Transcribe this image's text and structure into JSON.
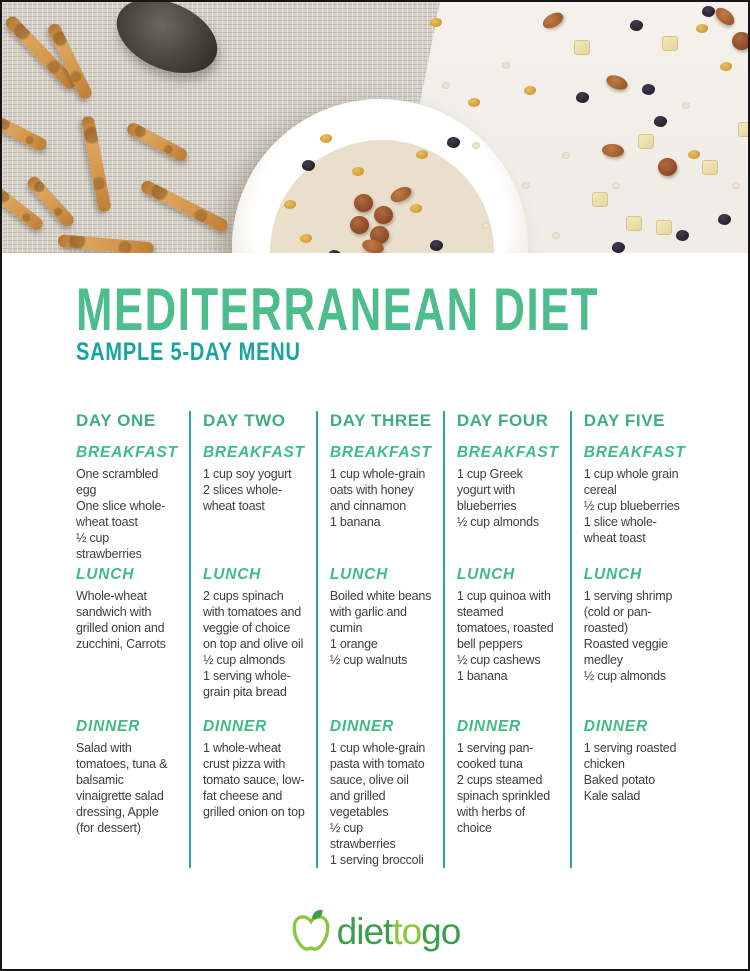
{
  "header": {
    "title": "MEDITERRANEAN DIET",
    "subtitle": "SAMPLE 5-DAY MENU"
  },
  "colors": {
    "title_green": "#4dbd8c",
    "subtitle_teal": "#17a3a0",
    "day_heading_green": "#3fae7e",
    "meal_heading_green": "#3fbc85",
    "divider_teal": "#2aa7a3",
    "body_text": "#3e3e3e",
    "logo_dark_green": "#3e9e4f",
    "logo_light_green": "#8cc63f"
  },
  "menu": {
    "days": [
      {
        "label": "DAY ONE",
        "meals": [
          {
            "label": "BREAKFAST",
            "items": [
              "One scrambled egg",
              "One slice whole-wheat toast",
              "½ cup strawberries"
            ]
          },
          {
            "label": "LUNCH",
            "items": [
              "Whole-wheat sandwich with grilled onion and zucchini, Carrots"
            ]
          },
          {
            "label": "DINNER",
            "items": [
              "Salad with tomatoes, tuna & balsamic vinaigrette salad dressing, Apple (for dessert)"
            ]
          }
        ]
      },
      {
        "label": "DAY TWO",
        "meals": [
          {
            "label": "BREAKFAST",
            "items": [
              "1 cup soy yogurt",
              "2 slices whole-wheat toast"
            ]
          },
          {
            "label": "LUNCH",
            "items": [
              "2 cups spinach with tomatoes and veggie of choice on top and olive oil",
              "½ cup almonds",
              "1 serving whole-grain pita bread"
            ]
          },
          {
            "label": "DINNER",
            "items": [
              "1 whole-wheat crust pizza with tomato sauce, low-fat cheese and grilled onion on top"
            ]
          }
        ]
      },
      {
        "label": "DAY THREE",
        "meals": [
          {
            "label": "BREAKFAST",
            "items": [
              "1 cup whole-grain oats with honey and cinnamon",
              "1 banana"
            ]
          },
          {
            "label": "LUNCH",
            "items": [
              "Boiled white beans with garlic and cumin",
              "1 orange",
              "½ cup walnuts"
            ]
          },
          {
            "label": "DINNER",
            "items": [
              "1 cup whole-grain pasta with tomato sauce, olive oil and grilled vegetables",
              "½ cup strawberries",
              "1 serving broccoli"
            ]
          }
        ]
      },
      {
        "label": "DAY FOUR",
        "meals": [
          {
            "label": "BREAKFAST",
            "items": [
              "1 cup Greek yogurt with blueberries",
              "½ cup almonds"
            ]
          },
          {
            "label": "LUNCH",
            "items": [
              "1 cup quinoa with steamed tomatoes, roasted bell peppers",
              "½ cup cashews",
              "1 banana"
            ]
          },
          {
            "label": "DINNER",
            "items": [
              "1 serving pan-cooked tuna",
              "2 cups steamed spinach sprinkled with herbs of choice"
            ]
          }
        ]
      },
      {
        "label": "DAY FIVE",
        "meals": [
          {
            "label": "BREAKFAST",
            "items": [
              "1 cup whole grain cereal",
              "½ cup blueberries",
              "1 slice whole-wheat toast"
            ]
          },
          {
            "label": "LUNCH",
            "items": [
              "1 serving shrimp (cold or pan-roasted)",
              "Roasted veggie medley",
              "½ cup almonds"
            ]
          },
          {
            "label": "DINNER",
            "items": [
              "1 serving roasted chicken",
              "Baked potato",
              "Kale salad"
            ]
          }
        ]
      }
    ]
  },
  "footer": {
    "logo_diet": "diet",
    "logo_to": "to",
    "logo_go": "go"
  }
}
